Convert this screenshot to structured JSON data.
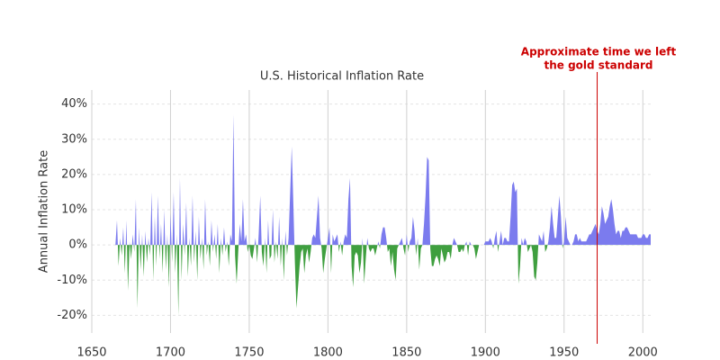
{
  "chart_data": {
    "type": "area",
    "title": "U.S. Historical Inflation Rate",
    "y_label": "Annual Inflation Rate",
    "grid": true,
    "positive_color": "#7b7bee",
    "negative_color": "#3f9f3f",
    "xlim": [
      1650,
      2005
    ],
    "xticks": [
      1650,
      1700,
      1750,
      1800,
      1850,
      1900,
      1950,
      2000
    ],
    "ylim": [
      -25,
      44
    ],
    "yticks": [
      {
        "value": -20,
        "label": "-20%"
      },
      {
        "value": -10,
        "label": "-10%"
      },
      {
        "value": 0,
        "label": "0%"
      },
      {
        "value": 10,
        "label": "10%"
      },
      {
        "value": 20,
        "label": "20%"
      },
      {
        "value": 30,
        "label": "30%"
      },
      {
        "value": 40,
        "label": "40%"
      }
    ],
    "annotation": {
      "lines": [
        "Approximate time we left",
        "the gold standard"
      ],
      "x": 1971,
      "color": "#cc0000"
    },
    "x": [
      1665,
      1666,
      1667,
      1668,
      1669,
      1670,
      1671,
      1672,
      1673,
      1674,
      1675,
      1676,
      1677,
      1678,
      1679,
      1680,
      1681,
      1682,
      1683,
      1684,
      1685,
      1686,
      1687,
      1688,
      1689,
      1690,
      1691,
      1692,
      1693,
      1694,
      1695,
      1696,
      1697,
      1698,
      1699,
      1700,
      1701,
      1702,
      1703,
      1704,
      1705,
      1706,
      1707,
      1708,
      1709,
      1710,
      1711,
      1712,
      1713,
      1714,
      1715,
      1716,
      1717,
      1718,
      1719,
      1720,
      1721,
      1722,
      1723,
      1724,
      1725,
      1726,
      1727,
      1728,
      1729,
      1730,
      1731,
      1732,
      1733,
      1734,
      1735,
      1736,
      1737,
      1738,
      1739,
      1740,
      1741,
      1742,
      1743,
      1744,
      1745,
      1746,
      1747,
      1748,
      1749,
      1750,
      1751,
      1752,
      1753,
      1754,
      1755,
      1756,
      1757,
      1758,
      1759,
      1760,
      1761,
      1762,
      1763,
      1764,
      1765,
      1766,
      1767,
      1768,
      1769,
      1770,
      1771,
      1772,
      1773,
      1774,
      1775,
      1776,
      1777,
      1778,
      1779,
      1780,
      1781,
      1782,
      1783,
      1784,
      1785,
      1786,
      1787,
      1788,
      1789,
      1790,
      1791,
      1792,
      1793,
      1794,
      1795,
      1796,
      1797,
      1798,
      1799,
      1800,
      1801,
      1802,
      1803,
      1804,
      1805,
      1806,
      1807,
      1808,
      1809,
      1810,
      1811,
      1812,
      1813,
      1814,
      1815,
      1816,
      1817,
      1818,
      1819,
      1820,
      1821,
      1822,
      1823,
      1824,
      1825,
      1826,
      1827,
      1828,
      1829,
      1830,
      1831,
      1832,
      1833,
      1834,
      1835,
      1836,
      1837,
      1838,
      1839,
      1840,
      1841,
      1842,
      1843,
      1844,
      1845,
      1846,
      1847,
      1848,
      1849,
      1850,
      1851,
      1852,
      1853,
      1854,
      1855,
      1856,
      1857,
      1858,
      1859,
      1860,
      1861,
      1862,
      1863,
      1864,
      1865,
      1866,
      1867,
      1868,
      1869,
      1870,
      1871,
      1872,
      1873,
      1874,
      1875,
      1876,
      1877,
      1878,
      1879,
      1880,
      1881,
      1882,
      1883,
      1884,
      1885,
      1886,
      1887,
      1888,
      1889,
      1890,
      1891,
      1892,
      1893,
      1894,
      1895,
      1896,
      1897,
      1898,
      1899,
      1900,
      1901,
      1902,
      1903,
      1904,
      1905,
      1906,
      1907,
      1908,
      1909,
      1910,
      1911,
      1912,
      1913,
      1914,
      1915,
      1916,
      1917,
      1918,
      1919,
      1920,
      1921,
      1922,
      1923,
      1924,
      1925,
      1926,
      1927,
      1928,
      1929,
      1930,
      1931,
      1932,
      1933,
      1934,
      1935,
      1936,
      1937,
      1938,
      1939,
      1940,
      1941,
      1942,
      1943,
      1944,
      1945,
      1946,
      1947,
      1948,
      1949,
      1950,
      1951,
      1952,
      1953,
      1954,
      1955,
      1956,
      1957,
      1958,
      1959,
      1960,
      1961,
      1962,
      1963,
      1964,
      1965,
      1966,
      1967,
      1968,
      1969,
      1970,
      1971,
      1972,
      1973,
      1974,
      1975,
      1976,
      1977,
      1978,
      1979,
      1980,
      1981,
      1982,
      1983,
      1984,
      1985,
      1986,
      1987,
      1988,
      1989,
      1990,
      1991,
      1992,
      1993,
      1994,
      1995,
      1996,
      1997,
      1998,
      1999,
      2000,
      2001,
      2002,
      2003,
      2004,
      2005
    ],
    "series": [
      {
        "name": "Annual Inflation Rate",
        "values": [
          0,
          7,
          -6,
          2,
          -3,
          5,
          -8,
          7,
          -13,
          1,
          -4,
          3,
          -2,
          13,
          -18,
          5,
          -7,
          3,
          -9,
          4,
          -5,
          2,
          -3,
          15,
          -10,
          8,
          -6,
          14,
          -4,
          6,
          -8,
          10,
          -7,
          3,
          -12,
          9,
          -5,
          15,
          -8,
          3,
          -20,
          19,
          -10,
          6,
          -3,
          12,
          -9,
          2,
          -6,
          14,
          -5,
          4,
          -10,
          8,
          -4,
          2,
          -7,
          13,
          -3,
          1,
          -6,
          7,
          -2,
          3,
          -4,
          6,
          -8,
          2,
          -3,
          5,
          -2,
          1,
          -6,
          3,
          1,
          37,
          -3,
          -11,
          -2,
          6,
          1,
          13,
          1,
          3,
          -2,
          0,
          -3,
          -4,
          -1,
          2,
          -5,
          3,
          14,
          -2,
          -6,
          2,
          -8,
          7,
          -4,
          -3,
          10,
          -5,
          1,
          -4,
          8,
          -6,
          2,
          -10,
          4,
          -3,
          2,
          15,
          28,
          12,
          -5,
          -18,
          -12,
          -6,
          -2,
          -1,
          -8,
          -3,
          -1,
          -5,
          -2,
          2,
          3,
          2,
          8,
          14,
          2,
          -1,
          -8,
          -4,
          -1,
          2,
          5,
          -8,
          3,
          1,
          2,
          3,
          -2,
          1,
          -3,
          1,
          3,
          2,
          13,
          19,
          -6,
          -12,
          -3,
          -2,
          -3,
          -8,
          -5,
          2,
          -11,
          -4,
          2,
          -1,
          -2,
          -1,
          -1,
          -3,
          -1,
          1,
          -1,
          3,
          5,
          5,
          2,
          -2,
          -1,
          -6,
          -2,
          -7,
          -10,
          -1,
          0,
          1,
          2,
          -1,
          -3,
          3,
          -2,
          1,
          2,
          8,
          4,
          -3,
          2,
          -7,
          -1,
          0,
          6,
          14,
          25,
          24,
          -1,
          -6,
          -6,
          -4,
          -3,
          -4,
          -6,
          -1,
          -3,
          -5,
          -4,
          -2,
          -2,
          -4,
          0,
          2,
          1,
          0,
          -2,
          -2,
          -1,
          -2,
          0,
          1,
          -3,
          1,
          0,
          0,
          -1,
          -4,
          -2,
          0,
          0,
          0,
          0,
          1,
          1,
          1,
          2,
          1,
          -1,
          2,
          4,
          -2,
          1,
          4,
          0,
          2,
          2,
          1,
          1,
          8,
          17,
          18,
          15,
          16,
          -11,
          -6,
          2,
          0,
          2,
          1,
          -2,
          -1,
          0,
          -2,
          -9,
          -10,
          -5,
          3,
          2,
          1,
          4,
          -2,
          -1,
          1,
          5,
          11,
          6,
          2,
          2,
          8,
          14,
          8,
          -1,
          1,
          8,
          2,
          1,
          0,
          0,
          1,
          3,
          3,
          1,
          2,
          1,
          1,
          1,
          1,
          2,
          3,
          3,
          4,
          5,
          6,
          4,
          3,
          6,
          11,
          9,
          6,
          7,
          8,
          11,
          13,
          10,
          6,
          3,
          4,
          4,
          2,
          4,
          4,
          5,
          5,
          4,
          3,
          3,
          3,
          3,
          3,
          2,
          2,
          2,
          3,
          3,
          2,
          2,
          3,
          3
        ]
      }
    ]
  }
}
